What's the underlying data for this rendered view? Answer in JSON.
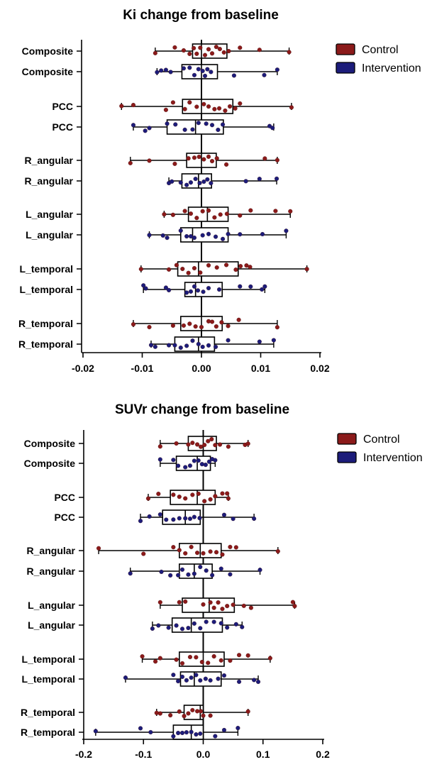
{
  "chart_data": [
    {
      "type": "boxplot",
      "title": "Ki change from baseline",
      "xlabel": "",
      "ylabel": "",
      "xlim": [
        -0.02,
        0.02
      ],
      "xticks": [
        -0.02,
        -0.01,
        0.0,
        0.01,
        0.02
      ],
      "xtick_labels": [
        "-0.02",
        "-0.01",
        "0.00",
        "0.01",
        "0.02"
      ],
      "legend": [
        {
          "name": "Control",
          "color": "#8b1a1a"
        },
        {
          "name": "Intervention",
          "color": "#1c1c7a"
        }
      ],
      "legend_position": "top-right",
      "grid": false,
      "rows": [
        {
          "label": "Composite",
          "group": "Control",
          "min": -0.0078,
          "q1": -0.0015,
          "median": 0.0,
          "q3": 0.0043,
          "max": 0.0148,
          "points": [
            -0.0078,
            -0.0045,
            -0.003,
            -0.002,
            -0.0013,
            -0.0008,
            -0.0002,
            0.0006,
            0.0012,
            0.0018,
            0.0025,
            0.0031,
            0.0038,
            0.0046,
            0.0065,
            0.0098,
            0.0148
          ]
        },
        {
          "label": "Composite",
          "group": "Intervention",
          "min": -0.0075,
          "q1": -0.0033,
          "median": 0.0,
          "q3": 0.0027,
          "max": 0.0128,
          "points": [
            -0.0075,
            -0.0068,
            -0.006,
            -0.0052,
            -0.003,
            -0.002,
            -0.0012,
            -0.0005,
            0.0002,
            0.0006,
            0.001,
            0.0016,
            0.0055,
            0.0106,
            0.0128
          ]
        },
        {
          "label": "PCC",
          "group": "Control",
          "min": -0.0135,
          "q1": -0.0032,
          "median": 0.0,
          "q3": 0.0053,
          "max": 0.0152,
          "points": [
            -0.0135,
            -0.0115,
            -0.006,
            -0.0048,
            -0.0028,
            -0.002,
            -0.0008,
            0.0004,
            0.0012,
            0.0022,
            0.003,
            0.004,
            0.0048,
            0.0057,
            0.0065,
            0.0152
          ]
        },
        {
          "label": "PCC",
          "group": "Intervention",
          "min": -0.0115,
          "q1": -0.0058,
          "median": -0.001,
          "q3": 0.0037,
          "max": 0.0122,
          "points": [
            -0.0115,
            -0.0095,
            -0.0088,
            -0.0058,
            -0.0044,
            -0.0028,
            -0.0015,
            -0.0005,
            0.0008,
            0.0018,
            0.0028,
            0.0036,
            0.0115,
            0.012
          ]
        },
        {
          "label": "R_angular",
          "group": "Control",
          "min": -0.012,
          "q1": -0.0025,
          "median": 0.0,
          "q3": 0.0025,
          "max": 0.0128,
          "points": [
            -0.012,
            -0.0088,
            -0.0045,
            -0.0022,
            -0.0012,
            -0.0004,
            0.0004,
            0.0012,
            0.0018,
            0.0026,
            0.0042,
            0.0107,
            0.0128
          ]
        },
        {
          "label": "R_angular",
          "group": "Intervention",
          "min": -0.0055,
          "q1": -0.0033,
          "median": -0.0005,
          "q3": 0.0017,
          "max": 0.0127,
          "points": [
            -0.0055,
            -0.005,
            -0.0035,
            -0.0025,
            -0.0018,
            -0.001,
            -0.0003,
            0.0004,
            0.001,
            0.0016,
            0.0075,
            0.0098,
            0.0127
          ]
        },
        {
          "label": "L_angular",
          "group": "Control",
          "min": -0.0063,
          "q1": -0.0022,
          "median": 0.001,
          "q3": 0.0045,
          "max": 0.015,
          "points": [
            -0.0063,
            -0.0048,
            -0.0028,
            -0.0018,
            -0.0008,
            0.0002,
            0.0012,
            0.0022,
            0.0032,
            0.0043,
            0.0065,
            0.0083,
            0.0125,
            0.015
          ]
        },
        {
          "label": "L_angular",
          "group": "Intervention",
          "min": -0.0088,
          "q1": -0.0035,
          "median": -0.0015,
          "q3": 0.0045,
          "max": 0.0143,
          "points": [
            -0.0088,
            -0.0065,
            -0.0058,
            -0.0035,
            -0.0025,
            -0.0018,
            -0.0012,
            0.0002,
            0.0012,
            0.0024,
            0.0036,
            0.0045,
            0.0065,
            0.0103,
            0.0143
          ]
        },
        {
          "label": "L_temporal",
          "group": "Control",
          "min": -0.0102,
          "q1": -0.004,
          "median": -0.0005,
          "q3": 0.0062,
          "max": 0.0178,
          "points": [
            -0.0102,
            -0.0055,
            -0.0042,
            -0.0032,
            -0.0022,
            -0.0012,
            -0.0002,
            0.0012,
            0.0026,
            0.0042,
            0.0058,
            0.0066,
            0.0076,
            0.0082,
            0.0178
          ]
        },
        {
          "label": "L_temporal",
          "group": "Intervention",
          "min": -0.0098,
          "q1": -0.0028,
          "median": -0.001,
          "q3": 0.0035,
          "max": 0.0107,
          "points": [
            -0.0098,
            -0.0094,
            -0.006,
            -0.0055,
            -0.0025,
            -0.0018,
            -0.0012,
            -0.0006,
            0.0003,
            0.0012,
            0.003,
            0.0065,
            0.0083,
            0.0102,
            0.0107
          ]
        },
        {
          "label": "R_temporal",
          "group": "Control",
          "min": -0.0115,
          "q1": -0.0035,
          "median": 0.0,
          "q3": 0.0035,
          "max": 0.0128,
          "points": [
            -0.0115,
            -0.0088,
            -0.0048,
            -0.003,
            -0.002,
            -0.001,
            0.0,
            0.0012,
            0.0018,
            0.0025,
            0.0034,
            0.0045,
            0.0063,
            0.0128
          ]
        },
        {
          "label": "R_temporal",
          "group": "Intervention",
          "min": -0.0085,
          "q1": -0.0045,
          "median": -0.0005,
          "q3": 0.0022,
          "max": 0.0122,
          "points": [
            -0.0085,
            -0.0078,
            -0.0055,
            -0.0045,
            -0.0035,
            -0.0025,
            -0.0015,
            -0.0005,
            0.0002,
            0.0012,
            0.0024,
            0.0045,
            0.0098,
            0.0122
          ]
        }
      ]
    },
    {
      "type": "boxplot",
      "title": "SUVr change from baseline",
      "xlabel": "",
      "ylabel": "",
      "xlim": [
        -0.2,
        0.2
      ],
      "xticks": [
        -0.2,
        -0.1,
        0.0,
        0.1,
        0.2
      ],
      "xtick_labels": [
        "-0.2",
        "-0.1",
        "0.0",
        "0.1",
        "0.2"
      ],
      "legend": [
        {
          "name": "Control",
          "color": "#8b1a1a"
        },
        {
          "name": "Intervention",
          "color": "#1c1c7a"
        }
      ],
      "legend_position": "top-right",
      "grid": false,
      "rows": [
        {
          "label": "Composite",
          "group": "Control",
          "min": -0.072,
          "q1": -0.025,
          "median": 0.0,
          "q3": 0.022,
          "max": 0.075,
          "points": [
            -0.072,
            -0.045,
            -0.025,
            -0.018,
            -0.01,
            -0.004,
            0.002,
            0.008,
            0.014,
            0.02,
            0.028,
            0.042,
            0.07,
            0.075
          ]
        },
        {
          "label": "Composite",
          "group": "Intervention",
          "min": -0.072,
          "q1": -0.045,
          "median": -0.01,
          "q3": 0.012,
          "max": 0.02,
          "points": [
            -0.072,
            -0.05,
            -0.042,
            -0.03,
            -0.022,
            -0.015,
            -0.008,
            -0.002,
            0.004,
            0.01,
            0.015,
            0.02
          ]
        },
        {
          "label": "PCC",
          "group": "Control",
          "min": -0.092,
          "q1": -0.055,
          "median": -0.01,
          "q3": 0.02,
          "max": 0.042,
          "points": [
            -0.092,
            -0.075,
            -0.05,
            -0.04,
            -0.03,
            -0.018,
            -0.008,
            0.002,
            0.012,
            0.02,
            0.032,
            0.04,
            0.042
          ]
        },
        {
          "label": "PCC",
          "group": "Intervention",
          "min": -0.105,
          "q1": -0.068,
          "median": -0.03,
          "q3": -0.005,
          "max": 0.085,
          "points": [
            -0.105,
            -0.09,
            -0.072,
            -0.062,
            -0.05,
            -0.04,
            -0.03,
            -0.022,
            -0.015,
            -0.006,
            0.035,
            0.05,
            0.085
          ]
        },
        {
          "label": "R_angular",
          "group": "Control",
          "min": -0.175,
          "q1": -0.04,
          "median": -0.005,
          "q3": 0.03,
          "max": 0.125,
          "points": [
            -0.175,
            -0.1,
            -0.05,
            -0.04,
            -0.03,
            -0.02,
            -0.01,
            0.0,
            0.012,
            0.022,
            0.032,
            0.045,
            0.055,
            0.125
          ]
        },
        {
          "label": "R_angular",
          "group": "Intervention",
          "min": -0.122,
          "q1": -0.04,
          "median": -0.015,
          "q3": 0.015,
          "max": 0.095,
          "points": [
            -0.122,
            -0.07,
            -0.055,
            -0.042,
            -0.035,
            -0.025,
            -0.015,
            -0.005,
            0.005,
            0.015,
            0.03,
            0.045,
            0.095
          ]
        },
        {
          "label": "L_angular",
          "group": "Control",
          "min": -0.072,
          "q1": -0.035,
          "median": 0.01,
          "q3": 0.052,
          "max": 0.153,
          "points": [
            -0.072,
            -0.04,
            -0.03,
            0.0,
            0.012,
            0.018,
            0.025,
            0.032,
            0.04,
            0.05,
            0.068,
            0.08,
            0.15,
            0.153
          ]
        },
        {
          "label": "L_angular",
          "group": "Intervention",
          "min": -0.085,
          "q1": -0.052,
          "median": -0.02,
          "q3": 0.032,
          "max": 0.065,
          "points": [
            -0.085,
            -0.075,
            -0.058,
            -0.045,
            -0.035,
            -0.025,
            -0.015,
            -0.005,
            0.005,
            0.018,
            0.03,
            0.04,
            0.055,
            0.065
          ]
        },
        {
          "label": "L_temporal",
          "group": "Control",
          "min": -0.102,
          "q1": -0.04,
          "median": 0.0,
          "q3": 0.035,
          "max": 0.112,
          "points": [
            -0.102,
            -0.08,
            -0.072,
            -0.045,
            -0.035,
            -0.022,
            -0.012,
            -0.002,
            0.008,
            0.018,
            0.03,
            0.045,
            0.06,
            0.075,
            0.112
          ]
        },
        {
          "label": "L_temporal",
          "group": "Intervention",
          "min": -0.13,
          "q1": -0.038,
          "median": -0.015,
          "q3": 0.03,
          "max": 0.092,
          "points": [
            -0.13,
            -0.05,
            -0.042,
            -0.035,
            -0.028,
            -0.02,
            -0.012,
            -0.005,
            0.004,
            0.012,
            0.025,
            0.035,
            0.06,
            0.085,
            0.092
          ]
        },
        {
          "label": "R_temporal",
          "group": "Control",
          "min": -0.078,
          "q1": -0.032,
          "median": -0.005,
          "q3": 0.0,
          "max": 0.075,
          "points": [
            -0.078,
            -0.072,
            -0.055,
            -0.04,
            -0.032,
            -0.025,
            -0.018,
            -0.01,
            -0.004,
            0.0,
            0.012,
            0.075
          ]
        },
        {
          "label": "R_temporal",
          "group": "Intervention",
          "min": -0.18,
          "q1": -0.05,
          "median": -0.02,
          "q3": 0.0,
          "max": 0.058,
          "points": [
            -0.18,
            -0.105,
            -0.088,
            -0.05,
            -0.042,
            -0.035,
            -0.028,
            -0.02,
            -0.012,
            -0.005,
            0.02,
            0.035,
            0.058
          ]
        }
      ]
    }
  ]
}
